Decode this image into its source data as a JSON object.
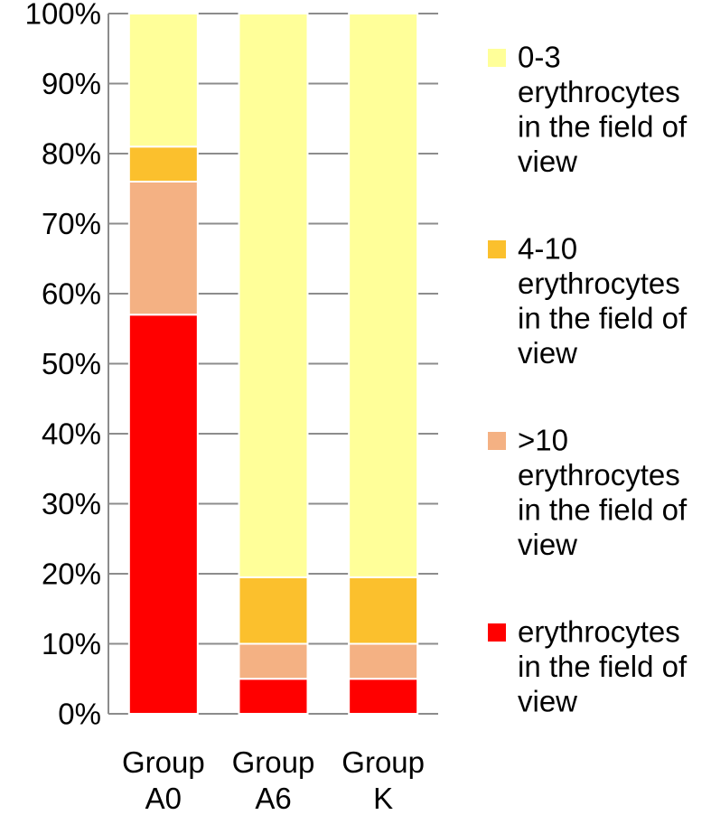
{
  "chart_data": {
    "type": "bar",
    "stacked": true,
    "title": "",
    "xlabel": "",
    "ylabel": "",
    "ylim": [
      0,
      100
    ],
    "y_ticks": [
      "0%",
      "10%",
      "20%",
      "30%",
      "40%",
      "50%",
      "60%",
      "70%",
      "80%",
      "90%",
      "100%"
    ],
    "categories": [
      [
        "Group",
        "A0"
      ],
      [
        "Group",
        "A6"
      ],
      [
        "Group",
        "K"
      ]
    ],
    "grid": true,
    "legend_position": "right",
    "series": [
      {
        "name": "erythrocytes in the field of view",
        "name_lines": [
          "erythrocytes",
          "in the field of",
          "view"
        ],
        "color": "#ff0000",
        "values": [
          57,
          5,
          5
        ]
      },
      {
        "name": ">10 erythrocytes in the field of view",
        "name_lines": [
          ">10",
          "erythrocytes",
          "in the field of",
          "view"
        ],
        "color": "#f4b183",
        "values": [
          19,
          5,
          5
        ]
      },
      {
        "name": "4-10 erythrocytes in the field of view",
        "name_lines": [
          "4-10",
          "erythrocytes",
          "in the field of",
          "view"
        ],
        "color": "#fbc02d",
        "values": [
          5,
          9.5,
          9.5
        ]
      },
      {
        "name": "0-3 erythrocytes in the field of view",
        "name_lines": [
          "0-3",
          "erythrocytes",
          "in the field of",
          "view"
        ],
        "color": "#ffff99",
        "values": [
          19,
          80.5,
          80.5
        ]
      }
    ]
  }
}
